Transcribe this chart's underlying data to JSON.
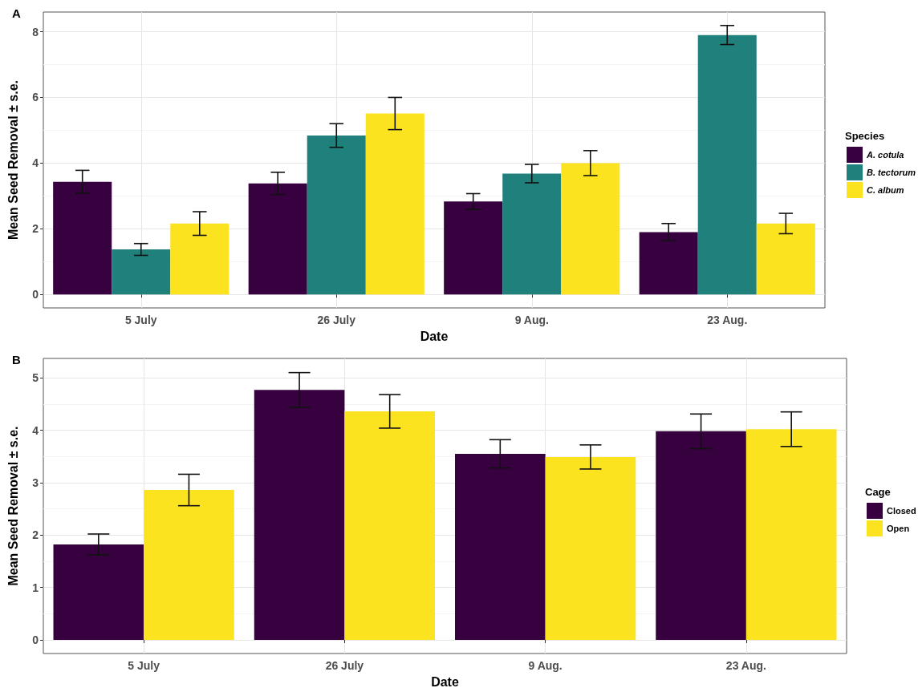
{
  "chart_data": [
    {
      "type": "bar",
      "title": "A",
      "xlabel": "Date",
      "ylabel": "Mean Seed Removal ± s.e.",
      "legend_title": "Species",
      "categories": [
        "5 July",
        "26 July",
        "9 Aug.",
        "23 Aug."
      ],
      "series": [
        {
          "name": "A. cotula",
          "color": "#37003f",
          "values": [
            3.43,
            3.38,
            2.83,
            1.9
          ],
          "errors": [
            0.35,
            0.34,
            0.24,
            0.26
          ]
        },
        {
          "name": "B. tectorum",
          "color": "#20817c",
          "values": [
            1.37,
            4.84,
            3.68,
            7.9
          ],
          "errors": [
            0.18,
            0.36,
            0.28,
            0.29
          ]
        },
        {
          "name": "C. album",
          "color": "#fbe31f",
          "values": [
            2.16,
            5.51,
            4.0,
            2.16
          ],
          "errors": [
            0.36,
            0.49,
            0.38,
            0.31
          ]
        }
      ],
      "ylim": [
        -0.41,
        8.6
      ],
      "yticks": [
        0,
        2,
        4,
        6,
        8
      ],
      "grid": true,
      "legend": "right"
    },
    {
      "type": "bar",
      "title": "B",
      "xlabel": "Date",
      "ylabel": "Mean Seed Removal ± s.e.",
      "legend_title": "Cage",
      "categories": [
        "5 July",
        "26 July",
        "9 Aug.",
        "23 Aug."
      ],
      "series": [
        {
          "name": "Closed",
          "color": "#37003f",
          "values": [
            1.82,
            4.77,
            3.55,
            3.98
          ],
          "errors": [
            0.2,
            0.33,
            0.27,
            0.33
          ]
        },
        {
          "name": "Open",
          "color": "#fbe31f",
          "values": [
            2.86,
            4.36,
            3.49,
            4.02
          ],
          "errors": [
            0.3,
            0.32,
            0.23,
            0.33
          ]
        }
      ],
      "ylim": [
        -0.26,
        5.37
      ],
      "yticks": [
        0,
        1,
        2,
        3,
        4,
        5
      ],
      "grid": true,
      "legend": "right"
    }
  ]
}
